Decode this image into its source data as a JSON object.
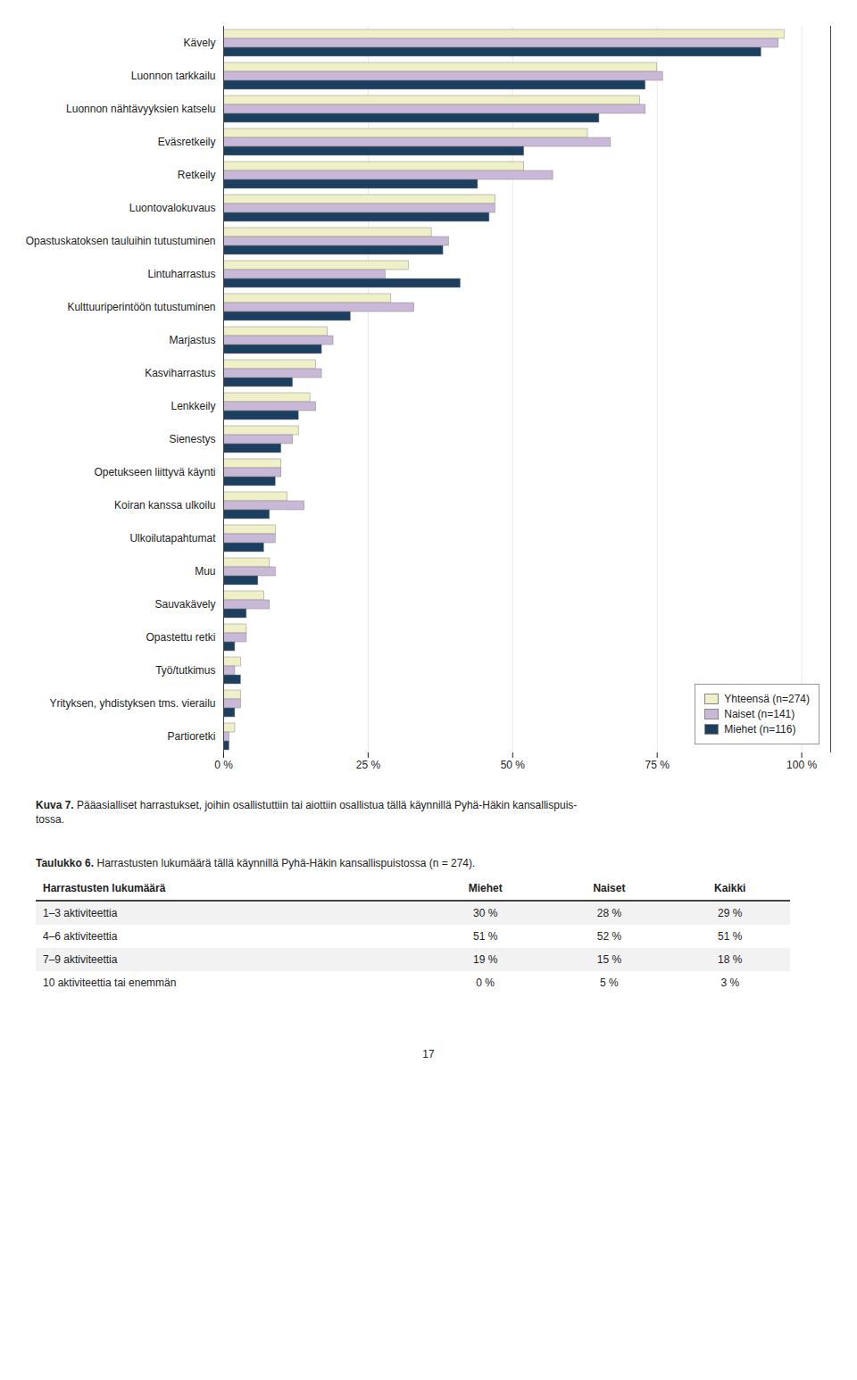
{
  "chart_data": {
    "type": "bar",
    "orientation": "horizontal",
    "categories": [
      "Kävely",
      "Luonnon tarkkailu",
      "Luonnon nähtävyyksien katselu",
      "Eväsretkeily",
      "Retkeily",
      "Luontovalokuvaus",
      "Opastuskatoksen tauluihin tutustuminen",
      "Lintuharrastus",
      "Kulttuuriperintöön tutustuminen",
      "Marjastus",
      "Kasviharrastus",
      "Lenkkeily",
      "Sienestys",
      "Opetukseen liittyvä käynti",
      "Koiran kanssa ulkoilu",
      "Ulkoilutapahtumat",
      "Muu",
      "Sauvakävely",
      "Opastettu retki",
      "Työ/tutkimus",
      "Yrityksen, yhdistyksen tms. vierailu",
      "Partioretki"
    ],
    "series": [
      {
        "name": "Yhteensä (n=274)",
        "color": "#f0f0c8",
        "values": [
          97,
          75,
          72,
          63,
          52,
          47,
          36,
          32,
          29,
          18,
          16,
          15,
          13,
          10,
          11,
          9,
          8,
          7,
          4,
          3,
          3,
          2
        ]
      },
      {
        "name": "Naiset (n=141)",
        "color": "#c9b8d8",
        "values": [
          96,
          76,
          73,
          67,
          57,
          47,
          39,
          28,
          33,
          19,
          17,
          16,
          12,
          10,
          14,
          9,
          9,
          8,
          4,
          2,
          3,
          1
        ]
      },
      {
        "name": "Miehet (n=116)",
        "color": "#1c3f60",
        "values": [
          93,
          73,
          65,
          52,
          44,
          46,
          38,
          41,
          22,
          17,
          12,
          13,
          10,
          9,
          8,
          7,
          6,
          4,
          2,
          3,
          2,
          1
        ]
      }
    ],
    "xlim": [
      0,
      105
    ],
    "xticks": [
      {
        "value": 0,
        "label": "0 %"
      },
      {
        "value": 25,
        "label": "25 %"
      },
      {
        "value": 50,
        "label": "50 %"
      },
      {
        "value": 75,
        "label": "75 %"
      },
      {
        "value": 100,
        "label": "100 %"
      }
    ],
    "grid": true,
    "legend": "lower right",
    "caption": {
      "label": "Kuva 7.",
      "text": " Pääasialliset harrastukset, joihin osallistuttiin tai aiottiin osallistua tällä käynnillä Pyhä-Häkin kansallispuis-\ntossa."
    }
  },
  "table": {
    "title": {
      "label": "Taulukko 6.",
      "text": " Harrastusten lukumäärä tällä käynnillä Pyhä-Häkin kansallispuistossa (n = 274)."
    },
    "headers": [
      "Harrastusten lukumäärä",
      "Miehet",
      "Naiset",
      "Kaikki"
    ],
    "rows": [
      [
        "1–3 aktiviteettia",
        "30 %",
        "28 %",
        "29 %"
      ],
      [
        "4–6 aktiviteettia",
        "51 %",
        "52 %",
        "51 %"
      ],
      [
        "7–9 aktiviteettia",
        "19 %",
        "15 %",
        "18 %"
      ],
      [
        "10 aktiviteettia tai enemmän",
        "0 %",
        "5 %",
        "3 %"
      ]
    ]
  },
  "page_number": "17"
}
